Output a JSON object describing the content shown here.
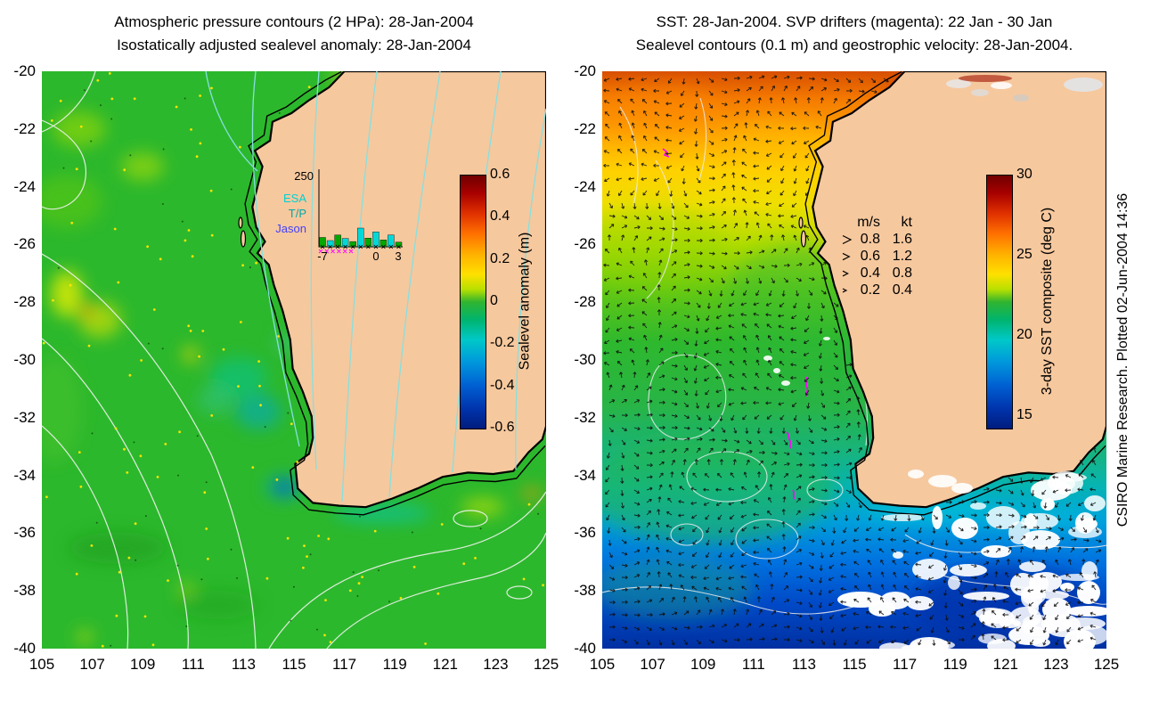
{
  "left_panel": {
    "title_line1": "Atmospheric pressure contours (2 HPa): 28-Jan-2004",
    "title_line2": "Isostatically adjusted sealevel anomaly: 28-Jan-2004",
    "colorbar": {
      "label": "Sealevel anomaly (m)",
      "min": -0.6,
      "max": 0.6,
      "ticks": [
        {
          "v": 0.6,
          "label": "0.6"
        },
        {
          "v": 0.4,
          "label": "0.4"
        },
        {
          "v": 0.2,
          "label": "0.2"
        },
        {
          "v": 0,
          "label": "0"
        },
        {
          "v": -0.2,
          "label": "-0.2"
        },
        {
          "v": -0.4,
          "label": "-0.4"
        },
        {
          "v": -0.6,
          "label": "-0.6"
        }
      ]
    },
    "inset": {
      "axis_max_label": "250",
      "series": [
        {
          "label": "ESA",
          "color": "#00d2d2"
        },
        {
          "label": "T/P",
          "color": "#00a8a8"
        },
        {
          "label": "Jason",
          "color": "#4040ff"
        }
      ],
      "x_tick_labels": [
        "-7",
        "0",
        "3"
      ],
      "bar_values": [
        30,
        20,
        38,
        27,
        17,
        60,
        28,
        48,
        22,
        38,
        15
      ],
      "bar_colors": [
        "green",
        "cyan",
        "green",
        "cyan",
        "green",
        "cyan",
        "green",
        "cyan",
        "green",
        "cyan",
        "green"
      ]
    }
  },
  "right_panel": {
    "title_line1": "SST: 28-Jan-2004. SVP drifters (magenta): 22 Jan - 30 Jan",
    "title_line2": "Sealevel contours (0.1 m) and geostrophic velocity: 28-Jan-2004.",
    "colorbar": {
      "label": "3-day SST composite (deg C)",
      "min": 14.2,
      "max": 30,
      "ticks": [
        {
          "v": 30,
          "label": "30"
        },
        {
          "v": 25,
          "label": "25"
        },
        {
          "v": 20,
          "label": "20"
        },
        {
          "v": 15,
          "label": "15"
        }
      ]
    },
    "velocity_legend": {
      "header_ms": "m/s",
      "header_kt": "kt",
      "rows": [
        {
          "ms": "0.8",
          "kt": "1.6"
        },
        {
          "ms": "0.6",
          "kt": "1.2"
        },
        {
          "ms": "0.4",
          "kt": "0.8"
        },
        {
          "ms": "0.2",
          "kt": "0.4"
        }
      ]
    }
  },
  "credit": "CSIRO Marine Research. Plotted 02-Jun-2004 14:36",
  "axes": {
    "x_tick_labels": [
      "105",
      "107",
      "109",
      "111",
      "113",
      "115",
      "117",
      "119",
      "121",
      "123",
      "125"
    ],
    "y_tick_labels": [
      "-20",
      "-22",
      "-24",
      "-26",
      "-28",
      "-30",
      "-32",
      "-34",
      "-36",
      "-38",
      "-40"
    ]
  },
  "map": {
    "xlim": [
      105,
      125
    ],
    "ylim": [
      -40,
      -20
    ],
    "coastline": [
      [
        117.0,
        -20.0
      ],
      [
        116.4,
        -20.55
      ],
      [
        115.6,
        -21.0
      ],
      [
        114.9,
        -21.45
      ],
      [
        114.15,
        -21.75
      ],
      [
        114.05,
        -22.4
      ],
      [
        113.45,
        -22.75
      ],
      [
        113.75,
        -23.3
      ],
      [
        113.55,
        -24.0
      ],
      [
        113.35,
        -24.7
      ],
      [
        113.5,
        -25.4
      ],
      [
        113.85,
        -25.9
      ],
      [
        113.55,
        -26.3
      ],
      [
        114.0,
        -26.7
      ],
      [
        114.2,
        -27.4
      ],
      [
        114.55,
        -28.3
      ],
      [
        114.85,
        -29.3
      ],
      [
        114.95,
        -30.3
      ],
      [
        115.35,
        -31.1
      ],
      [
        115.7,
        -31.95
      ],
      [
        115.75,
        -32.7
      ],
      [
        115.6,
        -33.25
      ],
      [
        115.05,
        -33.6
      ],
      [
        115.15,
        -34.45
      ],
      [
        115.75,
        -34.95
      ],
      [
        116.8,
        -35.05
      ],
      [
        117.85,
        -35.1
      ],
      [
        118.9,
        -34.8
      ],
      [
        119.9,
        -34.45
      ],
      [
        120.9,
        -34.05
      ],
      [
        121.9,
        -33.9
      ],
      [
        122.9,
        -33.95
      ],
      [
        123.7,
        -33.85
      ],
      [
        124.3,
        -33.2
      ],
      [
        124.85,
        -32.75
      ],
      [
        125.0,
        -32.3
      ],
      [
        125.0,
        -20.0
      ]
    ]
  },
  "chart_data": [
    {
      "type": "heatmap",
      "panel": "left",
      "title": "Atmospheric pressure contours (2 HPa): 28-Jan-2004 / Isostatically adjusted sealevel anomaly: 28-Jan-2004",
      "xlim": [
        105,
        125
      ],
      "ylim": [
        -40,
        -20
      ],
      "x_ticks": [
        105,
        107,
        109,
        111,
        113,
        115,
        117,
        119,
        121,
        123,
        125
      ],
      "y_ticks": [
        -20,
        -22,
        -24,
        -26,
        -28,
        -30,
        -32,
        -34,
        -36,
        -38,
        -40
      ],
      "colorbar": {
        "label": "Sealevel anomaly (m)",
        "min": -0.6,
        "max": 0.6,
        "tick_values": [
          0.6,
          0.4,
          0.2,
          0,
          -0.2,
          -0.4,
          -0.6
        ]
      },
      "layers": [
        "sealevel anomaly field (color)",
        "atmospheric pressure contours (cyan)",
        "sealevel contours (white)",
        "observation points (yellow dots)",
        "coastline and shelf line (black)"
      ],
      "inset_histogram": {
        "y_axis_max": 250,
        "x_ticks": [
          -7,
          0,
          3
        ],
        "series": [
          "ESA",
          "T/P",
          "Jason"
        ],
        "values": [
          30,
          20,
          38,
          27,
          17,
          60,
          28,
          48,
          22,
          38,
          15
        ]
      }
    },
    {
      "type": "heatmap",
      "panel": "right",
      "title": "SST: 28-Jan-2004. SVP drifters (magenta): 22 Jan - 30 Jan / Sealevel contours (0.1 m) and geostrophic velocity: 28-Jan-2004.",
      "xlim": [
        105,
        125
      ],
      "ylim": [
        -40,
        -20
      ],
      "x_ticks": [
        105,
        107,
        109,
        111,
        113,
        115,
        117,
        119,
        121,
        123,
        125
      ],
      "y_ticks": [
        -20,
        -22,
        -24,
        -26,
        -28,
        -30,
        -32,
        -34,
        -36,
        -38,
        -40
      ],
      "colorbar": {
        "label": "3-day SST composite (deg C)",
        "min": 14.2,
        "max": 30,
        "tick_values": [
          30,
          25,
          20,
          15
        ]
      },
      "velocity_scale": {
        "units": [
          "m/s",
          "kt"
        ],
        "values_ms": [
          0.8,
          0.6,
          0.4,
          0.2
        ],
        "values_kt": [
          1.6,
          1.2,
          0.8,
          0.4
        ]
      },
      "layers": [
        "3-day SST composite (color)",
        "geostrophic velocity vectors (black arrows)",
        "sealevel contours 0.1 m (white)",
        "SVP drifter tracks (magenta)",
        "clouds / missing data (white)",
        "coastline and shelf line (black)"
      ]
    }
  ]
}
